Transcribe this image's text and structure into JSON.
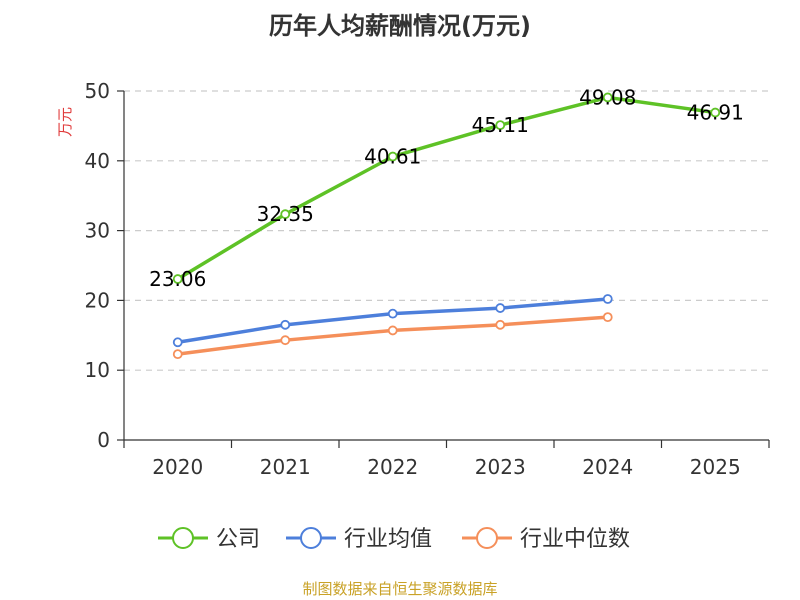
{
  "chart_data": {
    "type": "line",
    "title": "历年人均薪酬情况(万元)",
    "ylabel": "万元",
    "xlabel": "",
    "categories": [
      "2020",
      "2021",
      "2022",
      "2023",
      "2024",
      "2025"
    ],
    "ylim": [
      0,
      50
    ],
    "yticks": [
      "0",
      "10",
      "20",
      "30",
      "40",
      "50"
    ],
    "grid": true,
    "legend_position": "bottom",
    "series": [
      {
        "name": "公司",
        "color": "#5ec226",
        "values": [
          23.06,
          32.35,
          40.61,
          45.11,
          49.08,
          46.91
        ],
        "labels": [
          "23.06",
          "32.35",
          "40.61",
          "45.11",
          "49.08",
          "46.91"
        ]
      },
      {
        "name": "行业均值",
        "color": "#4d7fdb",
        "values": [
          14.0,
          16.5,
          18.1,
          18.9,
          20.2,
          null
        ]
      },
      {
        "name": "行业中位数",
        "color": "#f58f5a",
        "values": [
          12.3,
          14.3,
          15.7,
          16.5,
          17.6,
          null
        ]
      }
    ]
  },
  "colors": {
    "title": "#333333",
    "ylabel": "#e03b3b",
    "axis": "#333333",
    "grid": "#cccccc",
    "source": "#c9a227"
  },
  "source_text": "制图数据来自恒生聚源数据库"
}
